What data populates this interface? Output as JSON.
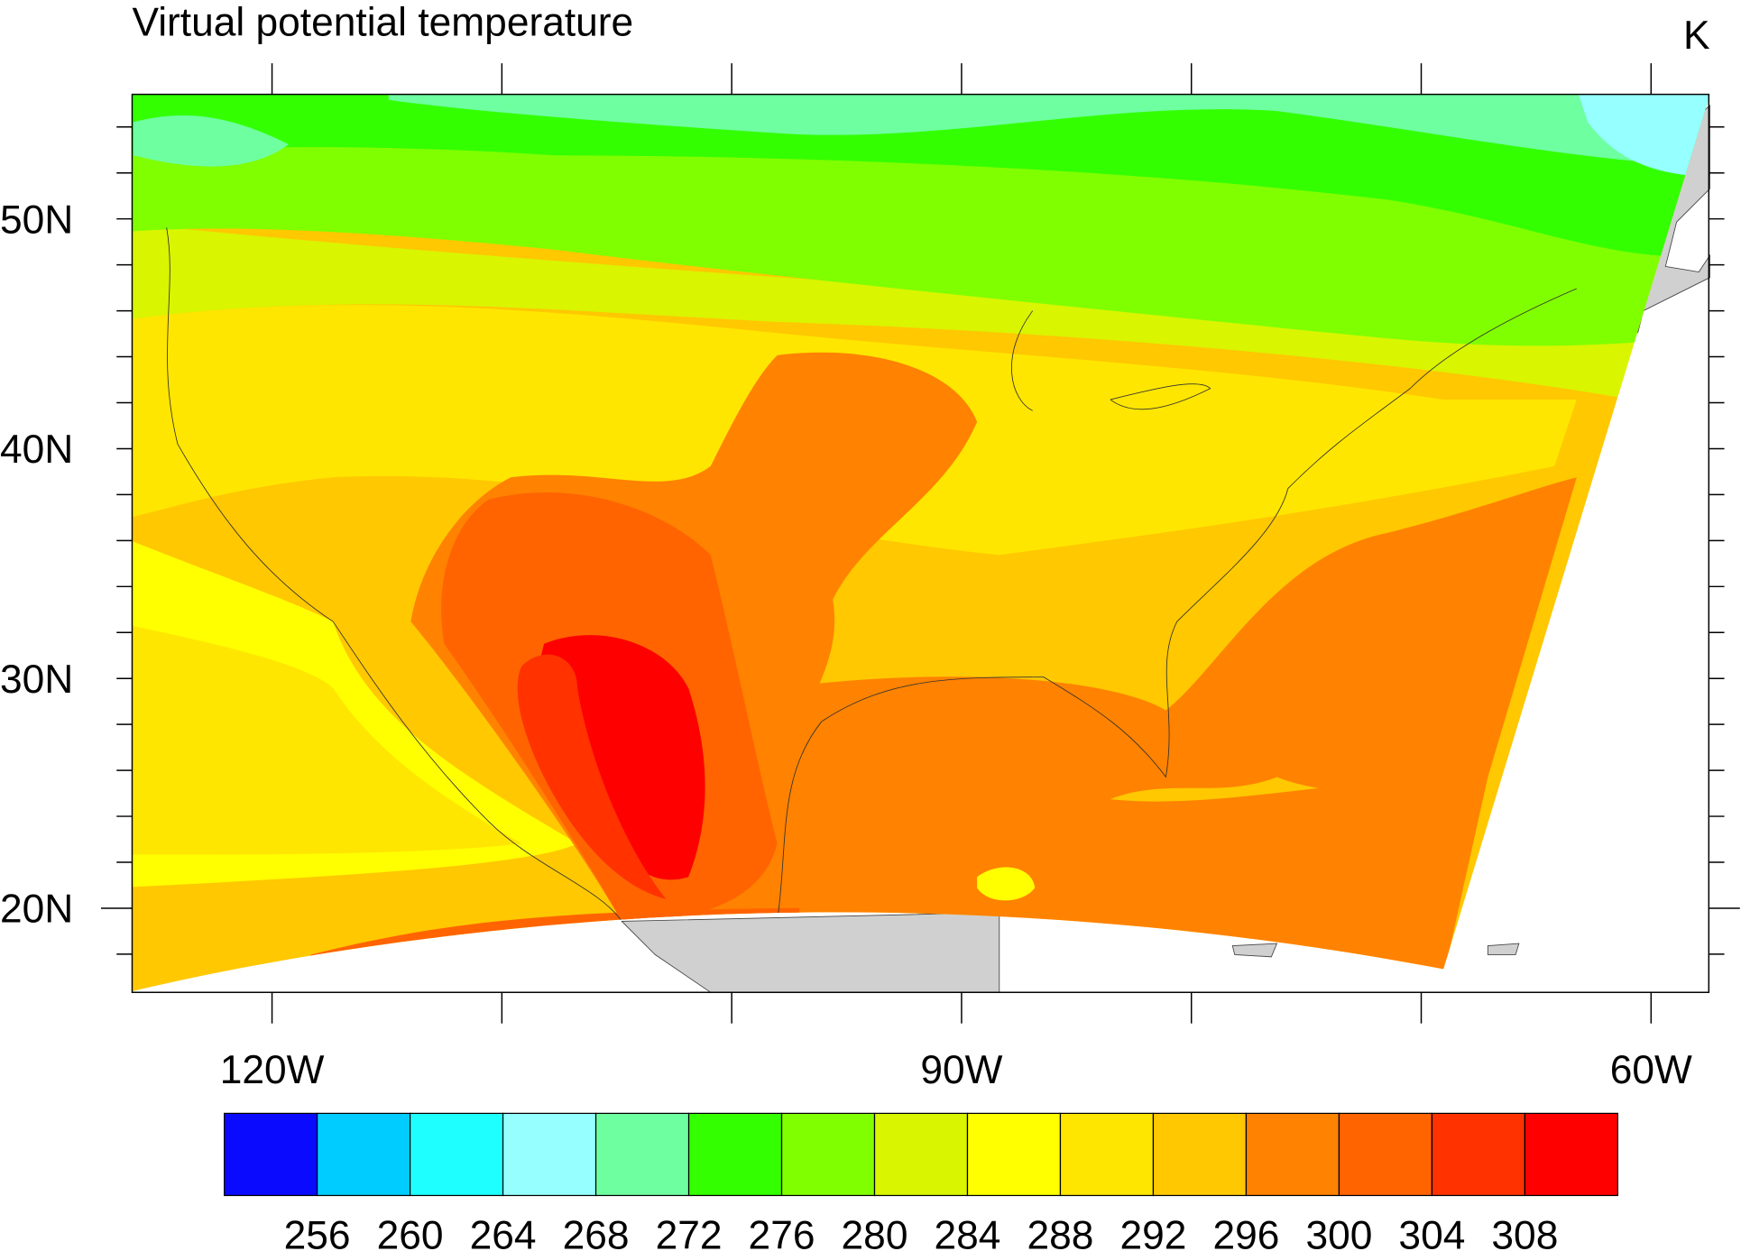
{
  "title": "Virtual potential temperature",
  "units": "K",
  "lat_labels": [
    "20N",
    "30N",
    "40N",
    "50N"
  ],
  "lon_labels": [
    "120W",
    "90W",
    "60W"
  ],
  "colorbar": {
    "colors": [
      "#0a0aff",
      "#00ccff",
      "#1effff",
      "#96ffff",
      "#6effa0",
      "#33ff00",
      "#80ff00",
      "#d9f500",
      "#ffff00",
      "#ffe600",
      "#ffc800",
      "#ff8200",
      "#ff6400",
      "#ff3200",
      "#ff0000"
    ],
    "labels": [
      256,
      260,
      264,
      268,
      272,
      276,
      280,
      284,
      288,
      292,
      296,
      300,
      304,
      308
    ]
  }
}
